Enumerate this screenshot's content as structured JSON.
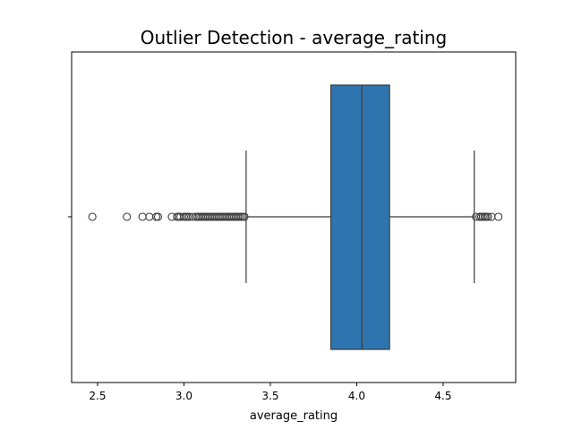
{
  "chart_data": {
    "type": "box",
    "title": "Outlier Detection - average_rating",
    "xlabel": "average_rating",
    "ylabel": "",
    "xlim": [
      2.35,
      4.92
    ],
    "xticks": [
      2.5,
      3.0,
      3.5,
      4.0,
      4.5
    ],
    "xtick_labels": [
      "2.5",
      "3.0",
      "3.5",
      "4.0",
      "4.5"
    ],
    "orientation": "horizontal",
    "grid": false,
    "box_color": "#2e75b0",
    "line_color": "#3a3a3a",
    "box": {
      "whisker_low": 3.36,
      "q1": 3.85,
      "median": 4.03,
      "q3": 4.19,
      "whisker_high": 4.68
    },
    "outliers": [
      2.47,
      2.67,
      2.76,
      2.8,
      2.84,
      2.85,
      2.93,
      2.96,
      2.97,
      2.98,
      3.0,
      3.01,
      3.02,
      3.03,
      3.05,
      3.07,
      3.08,
      3.09,
      3.1,
      3.11,
      3.12,
      3.13,
      3.14,
      3.15,
      3.16,
      3.17,
      3.18,
      3.19,
      3.2,
      3.21,
      3.22,
      3.23,
      3.24,
      3.25,
      3.26,
      3.27,
      3.28,
      3.29,
      3.3,
      3.31,
      3.32,
      3.33,
      3.34,
      3.35,
      4.69,
      4.71,
      4.72,
      4.73,
      4.74,
      4.75,
      4.76,
      4.78,
      4.82
    ]
  }
}
